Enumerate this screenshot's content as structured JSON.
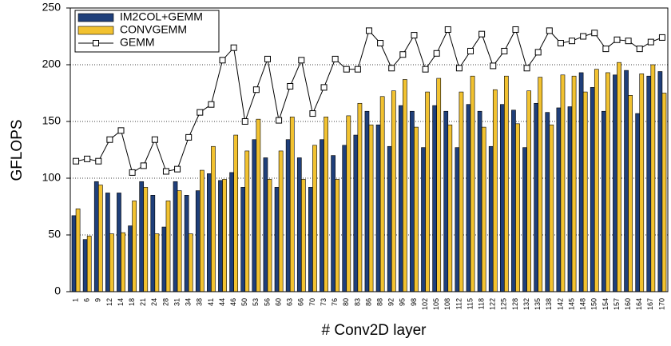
{
  "chart_data": {
    "type": "bar",
    "x_label": "# Conv2D layer",
    "y_label": "GFLOPS",
    "categories": [
      "1",
      "6",
      "9",
      "12",
      "14",
      "18",
      "21",
      "24",
      "28",
      "31",
      "34",
      "38",
      "41",
      "44",
      "46",
      "50",
      "53",
      "56",
      "60",
      "63",
      "66",
      "70",
      "73",
      "76",
      "80",
      "83",
      "86",
      "88",
      "92",
      "95",
      "98",
      "102",
      "105",
      "108",
      "112",
      "115",
      "118",
      "122",
      "125",
      "128",
      "132",
      "135",
      "138",
      "142",
      "145",
      "148",
      "150",
      "154",
      "157",
      "160",
      "164",
      "167",
      "170"
    ],
    "series": [
      {
        "name": "IM2COL+GEMM",
        "color": "#1f3f7a",
        "type": "bar",
        "values": [
          67,
          46,
          97,
          87,
          87,
          58,
          97,
          85,
          57,
          97,
          85,
          89,
          104,
          98,
          105,
          92,
          134,
          118,
          92,
          134,
          118,
          92,
          134,
          120,
          129,
          138,
          159,
          147,
          128,
          164,
          159,
          127,
          164,
          159,
          127,
          165,
          159,
          128,
          165,
          160,
          127,
          166,
          158,
          162,
          163,
          193,
          180,
          159,
          191,
          195,
          157,
          190,
          194
        ]
      },
      {
        "name": "CONVGEMM",
        "color": "#f2c230",
        "type": "bar",
        "values": [
          73,
          49,
          94,
          51,
          52,
          80,
          92,
          51,
          80,
          89,
          51,
          107,
          128,
          99,
          138,
          124,
          152,
          99,
          124,
          154,
          99,
          129,
          154,
          99,
          155,
          166,
          147,
          172,
          177,
          187,
          145,
          176,
          188,
          147,
          176,
          190,
          145,
          178,
          190,
          148,
          177,
          189,
          147,
          191,
          190,
          176,
          196,
          193,
          202,
          173,
          192,
          200,
          175
        ]
      },
      {
        "name": "GEMM",
        "color": "#000000",
        "type": "line",
        "values": [
          115,
          117,
          115,
          134,
          142,
          105,
          111,
          134,
          106,
          108,
          136,
          158,
          165,
          204,
          215,
          150,
          178,
          205,
          151,
          181,
          204,
          157,
          180,
          205,
          196,
          196,
          230,
          219,
          197,
          209,
          226,
          196,
          210,
          231,
          197,
          212,
          227,
          199,
          212,
          231,
          197,
          211,
          230,
          219,
          221,
          225,
          228,
          214,
          222,
          221,
          214,
          220,
          224
        ]
      }
    ],
    "ylim": [
      0,
      250
    ],
    "yticks": [
      0,
      50,
      100,
      150,
      200,
      250
    ],
    "grid": true,
    "legend": "top-left"
  }
}
